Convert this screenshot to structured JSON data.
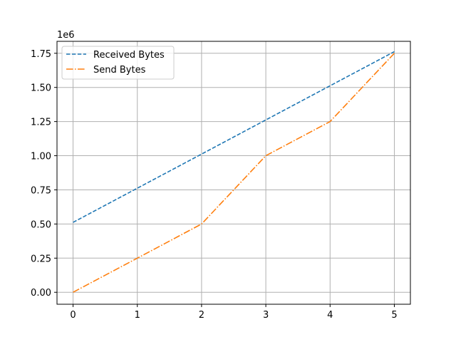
{
  "chart_data": {
    "type": "line",
    "title": "",
    "xlabel": "",
    "ylabel": "",
    "x": [
      0,
      1,
      2,
      3,
      4,
      5
    ],
    "xlim": [
      -0.25,
      5.25
    ],
    "ylim": [
      -87500,
      1837500
    ],
    "xticks": [
      0,
      1,
      2,
      3,
      4,
      5
    ],
    "yticks": [
      0,
      250000,
      500000,
      750000,
      1000000,
      1250000,
      1500000,
      1750000
    ],
    "xtick_labels": [
      "0",
      "1",
      "2",
      "3",
      "4",
      "5"
    ],
    "ytick_labels": [
      "0.00",
      "0.25",
      "0.50",
      "0.75",
      "1.00",
      "1.25",
      "1.50",
      "1.75"
    ],
    "y_offset_label": "1e6",
    "grid": true,
    "legend_position": "top-left",
    "series": [
      {
        "name": "Received Bytes",
        "values": [
          512000,
          762000,
          1012000,
          1262000,
          1512000,
          1762000
        ],
        "color": "#1f77b4",
        "style": "dashed"
      },
      {
        "name": "Send Bytes",
        "values": [
          0,
          250000,
          500000,
          1000000,
          1250000,
          1750000
        ],
        "color": "#ff7f0e",
        "style": "dashdot"
      }
    ]
  }
}
